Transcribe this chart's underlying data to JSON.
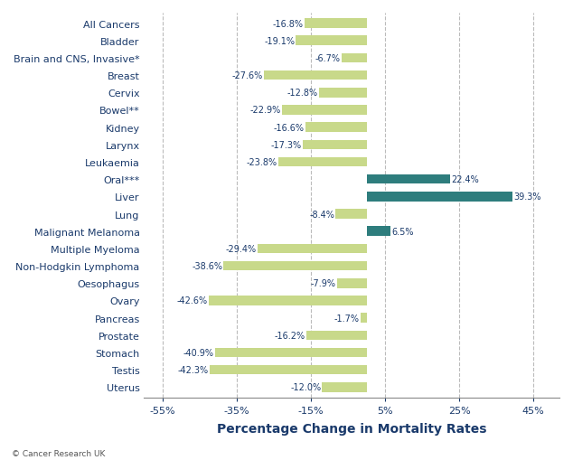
{
  "categories": [
    "All Cancers",
    "Bladder",
    "Brain and CNS, Invasive*",
    "Breast",
    "Cervix",
    "Bowel**",
    "Kidney",
    "Larynx",
    "Leukaemia",
    "Oral***",
    "Liver",
    "Lung",
    "Malignant Melanoma",
    "Multiple Myeloma",
    "Non-Hodgkin Lymphoma",
    "Oesophagus",
    "Ovary",
    "Pancreas",
    "Prostate",
    "Stomach",
    "Testis",
    "Uterus"
  ],
  "values": [
    -16.8,
    -19.1,
    -6.7,
    -27.6,
    -12.8,
    -22.9,
    -16.6,
    -17.3,
    -23.8,
    22.4,
    39.3,
    -8.4,
    6.5,
    -29.4,
    -38.6,
    -7.9,
    -42.6,
    -1.7,
    -16.2,
    -40.9,
    -42.3,
    -12.0
  ],
  "bar_color_positive": "#2e7d7d",
  "bar_color_negative": "#c8d98a",
  "xlabel": "Percentage Change in Mortality Rates",
  "xticks": [
    -55,
    -35,
    -15,
    5,
    25,
    45
  ],
  "xtick_labels": [
    "-55%",
    "-35%",
    "-15%",
    "5%",
    "25%",
    "45%"
  ],
  "xlim": [
    -60,
    52
  ],
  "background_color": "#ffffff",
  "label_color": "#1a3a6b",
  "axis_color": "#888888",
  "grid_color": "#bbbbbb",
  "footer_text": "© Cancer Research UK",
  "xlabel_fontsize": 10,
  "tick_label_fontsize": 8,
  "category_fontsize": 8,
  "value_label_fontsize": 7
}
